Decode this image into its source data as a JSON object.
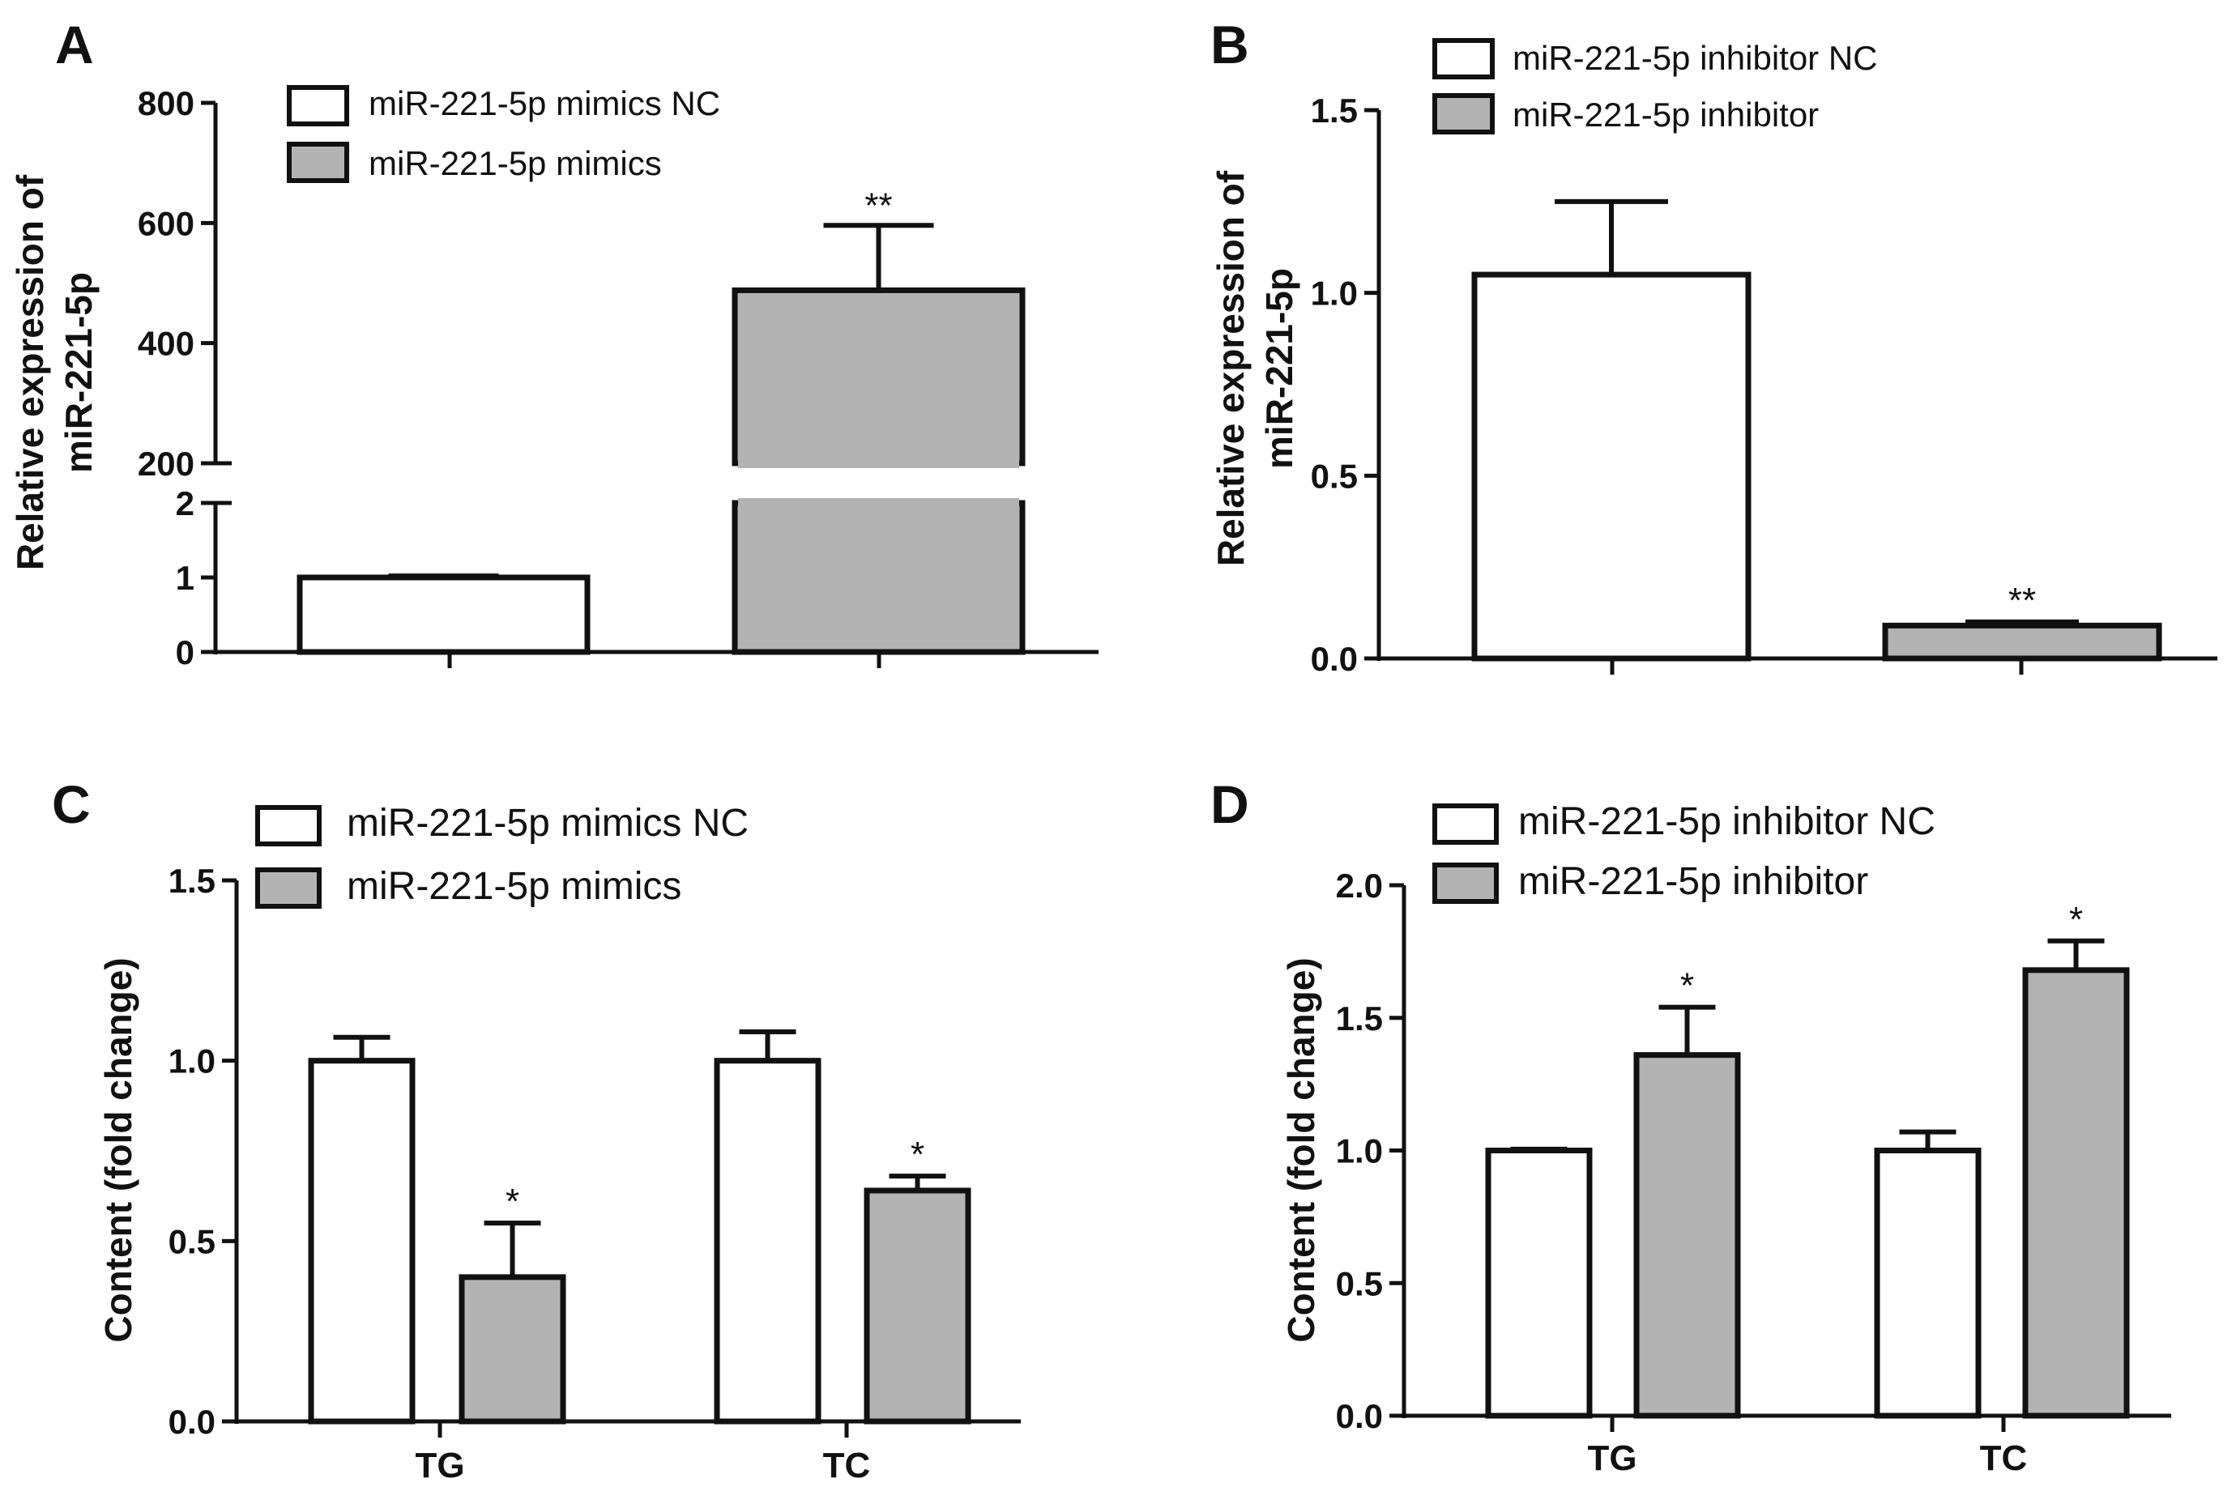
{
  "colors": {
    "ctrl_fill": "#ffffff",
    "treat_fill": "#b3b3b3",
    "stroke": "#111111"
  },
  "chart_data": [
    {
      "panel": "A",
      "type": "bar",
      "ylabel": [
        "Relative expression of",
        "miR-221-5p"
      ],
      "axis_break": true,
      "lower_ylim": [
        0,
        2
      ],
      "lower_ticks": [
        0,
        1,
        2
      ],
      "upper_ylim": [
        200,
        800
      ],
      "upper_ticks": [
        200,
        400,
        600,
        800
      ],
      "categories": [
        ""
      ],
      "series": [
        {
          "name": "miR-221-5p mimics NC",
          "values": [
            1.0
          ],
          "errors": [
            0.02
          ],
          "sig": [
            ""
          ]
        },
        {
          "name": "miR-221-5p mimics",
          "values": [
            488
          ],
          "errors": [
            108
          ],
          "sig": [
            "**"
          ]
        }
      ]
    },
    {
      "panel": "B",
      "type": "bar",
      "ylabel": [
        "Relative expression of",
        "miR-221-5p"
      ],
      "ylim": [
        0,
        1.5
      ],
      "yticks": [
        "0.0",
        "0.5",
        "1.0",
        "1.5"
      ],
      "categories": [
        ""
      ],
      "series": [
        {
          "name": "miR-221-5p inhibitor NC",
          "values": [
            1.05
          ],
          "errors": [
            0.2
          ],
          "sig": [
            ""
          ]
        },
        {
          "name": "miR-221-5p inhibitor",
          "values": [
            0.09
          ],
          "errors": [
            0.01
          ],
          "sig": [
            "**"
          ]
        }
      ]
    },
    {
      "panel": "C",
      "type": "bar",
      "ylabel": [
        "Content (fold change)"
      ],
      "ylim": [
        0,
        1.5
      ],
      "yticks": [
        "0.0",
        "0.5",
        "1.0",
        "1.5"
      ],
      "categories": [
        "TG",
        "TC"
      ],
      "series": [
        {
          "name": "miR-221-5p mimics NC",
          "values": [
            1.0,
            1.0
          ],
          "errors": [
            0.065,
            0.08
          ],
          "sig": [
            "",
            ""
          ]
        },
        {
          "name": "miR-221-5p mimics",
          "values": [
            0.4,
            0.64
          ],
          "errors": [
            0.15,
            0.04
          ],
          "sig": [
            "*",
            "*"
          ]
        }
      ]
    },
    {
      "panel": "D",
      "type": "bar",
      "ylabel": [
        "Content (fold change)"
      ],
      "ylim": [
        0,
        2.0
      ],
      "yticks": [
        "0.0",
        "0.5",
        "1.0",
        "1.5",
        "2.0"
      ],
      "categories": [
        "TG",
        "TC"
      ],
      "series": [
        {
          "name": "miR-221-5p inhibitor NC",
          "values": [
            1.0,
            1.0
          ],
          "errors": [
            0.005,
            0.07
          ],
          "sig": [
            "",
            ""
          ]
        },
        {
          "name": "miR-221-5p inhibitor",
          "values": [
            1.36,
            1.68
          ],
          "errors": [
            0.18,
            0.11
          ],
          "sig": [
            "*",
            "*"
          ]
        }
      ]
    }
  ]
}
